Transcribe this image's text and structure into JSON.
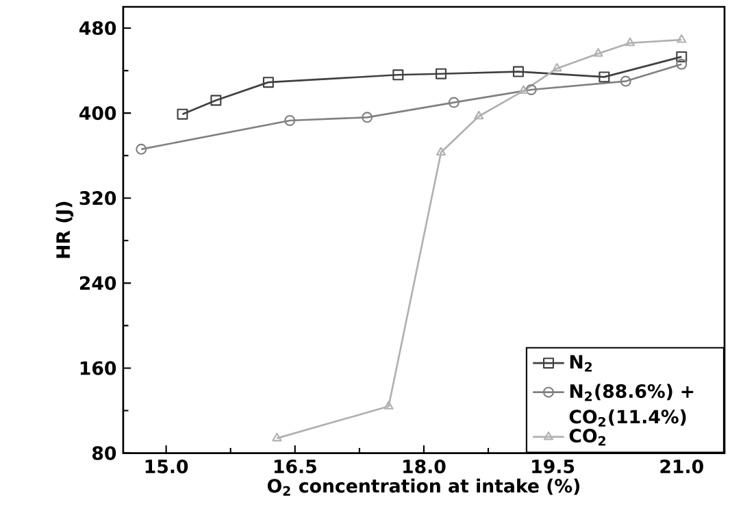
{
  "chart_data": {
    "type": "line",
    "xlabel": "O$_{2}$ concentration at intake (%)",
    "ylabel": "HR (J)",
    "xlim": [
      14.5,
      21.5
    ],
    "ylim": [
      80,
      500
    ],
    "xticks": [
      {
        "value": 15,
        "label": "15.0"
      },
      {
        "value": 16.5,
        "label": "16.5"
      },
      {
        "value": 18,
        "label": "18.0"
      },
      {
        "value": 19.5,
        "label": "19.5"
      },
      {
        "value": 21,
        "label": "21.0"
      }
    ],
    "yticks": [
      80,
      160,
      240,
      320,
      400,
      480
    ],
    "legend": "bottom right",
    "grid": false,
    "line_style": "solid",
    "series": [
      {
        "name": "N$_{2}$",
        "color": "#404040",
        "marker": "square",
        "x": [
          15.19,
          15.58,
          16.19,
          17.7,
          18.2,
          19.1,
          20.1,
          21.0
        ],
        "values": [
          399,
          412,
          429,
          436,
          437,
          439,
          434,
          453
        ]
      },
      {
        "name": "N$_{2}$(88.6%) + CO$_{2}$(11.4%)",
        "color": "#808080",
        "marker": "circle",
        "x": [
          14.71,
          16.44,
          17.34,
          18.35,
          19.25,
          20.35,
          21.0
        ],
        "values": [
          366,
          393,
          396,
          410,
          422,
          430,
          446
        ]
      },
      {
        "name": "CO$_{2}$",
        "color": "#b0b0b0",
        "marker": "triangle",
        "x": [
          16.29,
          17.59,
          18.2,
          18.64,
          19.16,
          19.55,
          20.03,
          20.4,
          21.0
        ],
        "values": [
          94,
          124,
          363,
          397,
          421,
          442,
          456,
          466,
          469
        ]
      }
    ]
  }
}
